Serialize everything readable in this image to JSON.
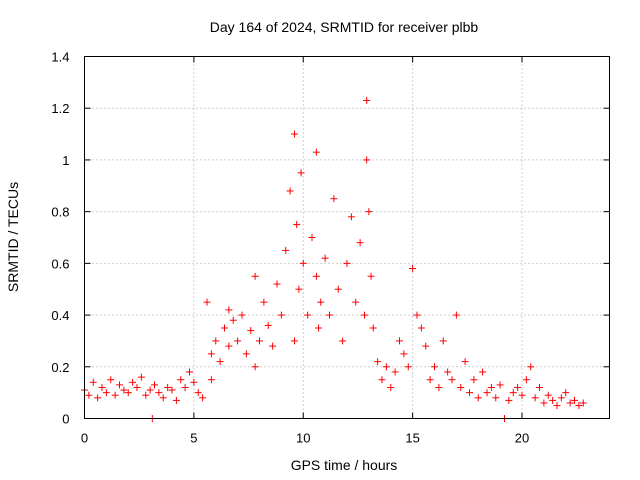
{
  "chart_data": {
    "type": "scatter",
    "title": "Day 164 of 2024, SRMTID for receiver plbb",
    "xlabel": "GPS time / hours",
    "ylabel": "SRMTID / TECUs",
    "xlim": [
      0,
      24
    ],
    "ylim": [
      0,
      1.4
    ],
    "xticks": [
      0,
      5,
      10,
      15,
      20
    ],
    "xtick_labels": [
      "0",
      "5",
      "10",
      "15",
      "20"
    ],
    "yticks": [
      0,
      0.2,
      0.4,
      0.6,
      0.8,
      1.0,
      1.2,
      1.4
    ],
    "ytick_labels": [
      "0",
      "0.2",
      "0.4",
      "0.6",
      "0.8",
      "1",
      "1.2",
      "1.4"
    ],
    "grid": true,
    "marker": "+",
    "series": [
      {
        "name": "SRMTID",
        "color": "#ff0000",
        "x": [
          0.0,
          0.2,
          0.4,
          0.6,
          0.8,
          1.0,
          1.2,
          1.4,
          1.6,
          1.8,
          2.0,
          2.2,
          2.4,
          2.6,
          2.8,
          3.0,
          3.1,
          3.2,
          3.4,
          3.6,
          3.8,
          4.0,
          4.2,
          4.4,
          4.6,
          4.8,
          5.0,
          5.2,
          5.4,
          5.6,
          5.8,
          5.8,
          6.0,
          6.2,
          6.4,
          6.6,
          6.6,
          6.8,
          7.0,
          7.2,
          7.4,
          7.6,
          7.8,
          7.8,
          8.0,
          8.2,
          8.4,
          8.6,
          8.8,
          9.0,
          9.2,
          9.4,
          9.6,
          9.6,
          9.7,
          9.8,
          9.9,
          10.0,
          10.2,
          10.4,
          10.6,
          10.6,
          10.7,
          10.8,
          11.0,
          11.2,
          11.4,
          11.6,
          11.8,
          12.0,
          12.2,
          12.4,
          12.6,
          12.8,
          12.9,
          12.9,
          13.0,
          13.1,
          13.2,
          13.4,
          13.6,
          13.8,
          14.0,
          14.2,
          14.4,
          14.6,
          14.8,
          15.0,
          15.2,
          15.4,
          15.6,
          15.8,
          16.0,
          16.2,
          16.4,
          16.6,
          16.8,
          17.0,
          17.2,
          17.4,
          17.6,
          17.8,
          18.0,
          18.2,
          18.4,
          18.6,
          18.8,
          19.0,
          19.2,
          19.4,
          19.6,
          19.8,
          20.0,
          20.2,
          20.4,
          20.6,
          20.8,
          21.0,
          21.2,
          21.4,
          21.6,
          21.8,
          22.0,
          22.2,
          22.4,
          22.6,
          22.8
        ],
        "y": [
          0.11,
          0.09,
          0.14,
          0.08,
          0.12,
          0.1,
          0.15,
          0.09,
          0.13,
          0.11,
          0.1,
          0.14,
          0.12,
          0.16,
          0.09,
          0.11,
          0.0,
          0.13,
          0.1,
          0.08,
          0.12,
          0.11,
          0.07,
          0.15,
          0.12,
          0.18,
          0.14,
          0.1,
          0.08,
          0.45,
          0.25,
          0.15,
          0.3,
          0.22,
          0.35,
          0.42,
          0.28,
          0.38,
          0.3,
          0.4,
          0.25,
          0.34,
          0.55,
          0.2,
          0.3,
          0.45,
          0.36,
          0.28,
          0.52,
          0.4,
          0.65,
          0.88,
          0.3,
          1.1,
          0.75,
          0.5,
          0.95,
          0.6,
          0.4,
          0.7,
          0.55,
          1.03,
          0.35,
          0.45,
          0.62,
          0.4,
          0.85,
          0.5,
          0.3,
          0.6,
          0.78,
          0.45,
          0.68,
          0.4,
          1.23,
          1.0,
          0.8,
          0.55,
          0.35,
          0.22,
          0.15,
          0.2,
          0.12,
          0.18,
          0.3,
          0.25,
          0.2,
          0.58,
          0.4,
          0.35,
          0.28,
          0.15,
          0.2,
          0.12,
          0.3,
          0.18,
          0.15,
          0.4,
          0.12,
          0.22,
          0.1,
          0.15,
          0.08,
          0.18,
          0.1,
          0.12,
          0.08,
          0.13,
          0.0,
          0.07,
          0.1,
          0.12,
          0.09,
          0.15,
          0.2,
          0.08,
          0.12,
          0.06,
          0.09,
          0.07,
          0.05,
          0.08,
          0.1,
          0.06,
          0.07,
          0.05,
          0.06
        ]
      }
    ]
  }
}
